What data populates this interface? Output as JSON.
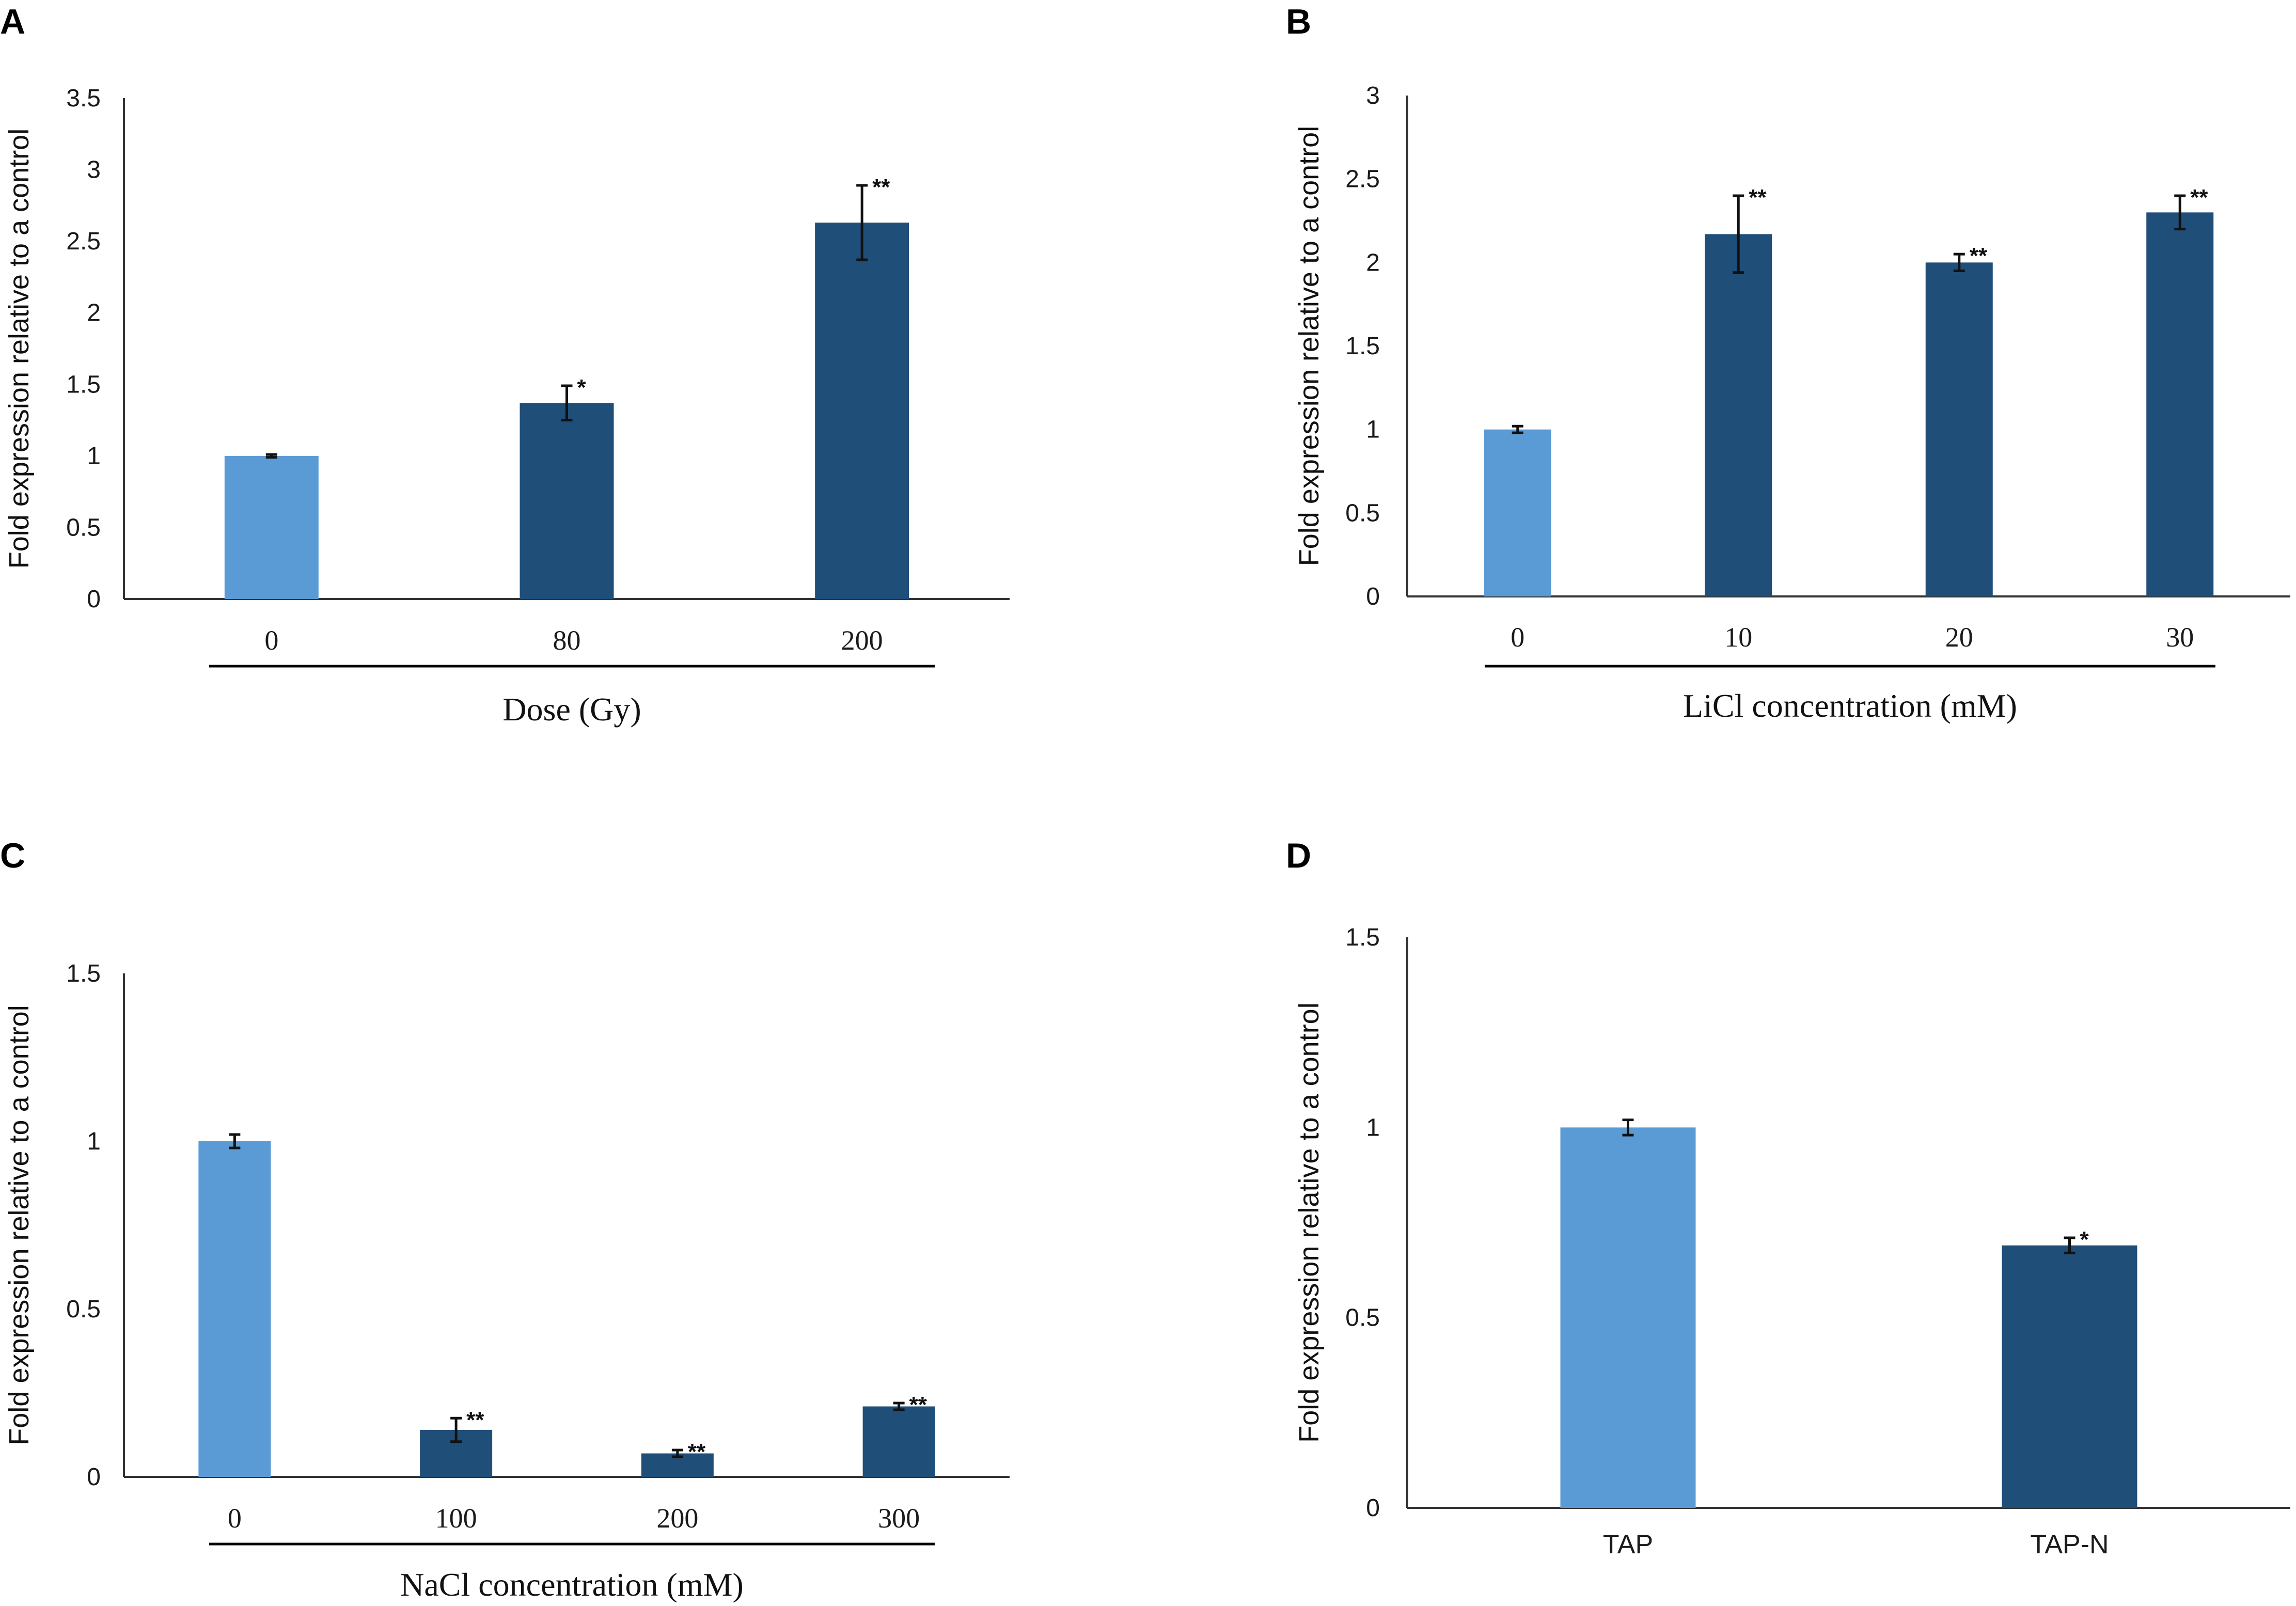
{
  "chart_data": [
    {
      "panel": "A",
      "type": "bar",
      "categories": [
        "0",
        "80",
        "200"
      ],
      "values": [
        1.0,
        1.37,
        2.63
      ],
      "errors": [
        0.01,
        0.12,
        0.26
      ],
      "significance": [
        "",
        "*",
        "**"
      ],
      "bar_colors": [
        "#5b9bd5",
        "#1f4e79",
        "#1f4e79"
      ],
      "ylabel": "Fold expression relative to a control",
      "xlabel": "Dose (Gy)",
      "ylim": [
        0,
        3.5
      ],
      "yticks": [
        0,
        0.5,
        1,
        1.5,
        2,
        2.5,
        3,
        3.5
      ],
      "ytick_labels": [
        "0",
        "0.5",
        "1",
        "1.5",
        "2",
        "2.5",
        "3",
        "3.5"
      ],
      "xtick_style": "serif",
      "group_line": true
    },
    {
      "panel": "B",
      "type": "bar",
      "categories": [
        "0",
        "10",
        "20",
        "30"
      ],
      "values": [
        1.0,
        2.17,
        2.0,
        2.3
      ],
      "errors": [
        0.02,
        0.23,
        0.05,
        0.1
      ],
      "significance": [
        "",
        "**",
        "**",
        "**"
      ],
      "bar_colors": [
        "#5b9bd5",
        "#1f4e79",
        "#1f4e79",
        "#1f4e79"
      ],
      "ylabel": "Fold expression relative to a control",
      "xlabel": "LiCl concentration (mM)",
      "ylim": [
        0,
        3
      ],
      "yticks": [
        0,
        0.5,
        1,
        1.5,
        2,
        2.5,
        3
      ],
      "ytick_labels": [
        "0",
        "0.5",
        "1",
        "1.5",
        "2",
        "2.5",
        "3"
      ],
      "xtick_style": "serif",
      "group_line": true
    },
    {
      "panel": "C",
      "type": "bar",
      "categories": [
        "0",
        "100",
        "200",
        "300"
      ],
      "values": [
        1.0,
        0.14,
        0.07,
        0.21
      ],
      "errors": [
        0.02,
        0.035,
        0.01,
        0.01
      ],
      "significance": [
        "",
        "**",
        "**",
        "**"
      ],
      "bar_colors": [
        "#5b9bd5",
        "#1f4e79",
        "#1f4e79",
        "#1f4e79"
      ],
      "ylabel": "Fold expression relative to a control",
      "xlabel": "NaCl concentration (mM)",
      "ylim": [
        0,
        1.5
      ],
      "yticks": [
        0,
        0.5,
        1,
        1.5
      ],
      "ytick_labels": [
        "0",
        "0.5",
        "1",
        "1.5"
      ],
      "xtick_style": "serif",
      "group_line": true
    },
    {
      "panel": "D",
      "type": "bar",
      "categories": [
        "TAP",
        "TAP-N"
      ],
      "values": [
        1.0,
        0.69
      ],
      "errors": [
        0.02,
        0.02
      ],
      "significance": [
        "",
        "*"
      ],
      "bar_colors": [
        "#5b9bd5",
        "#1f4e79"
      ],
      "ylabel": "Fold expression relative to a control",
      "xlabel": "",
      "ylim": [
        0,
        1.5
      ],
      "yticks": [
        0,
        0.5,
        1,
        1.5
      ],
      "ytick_labels": [
        "0",
        "0.5",
        "1",
        "1.5"
      ],
      "xtick_style": "sans",
      "group_line": false
    }
  ]
}
